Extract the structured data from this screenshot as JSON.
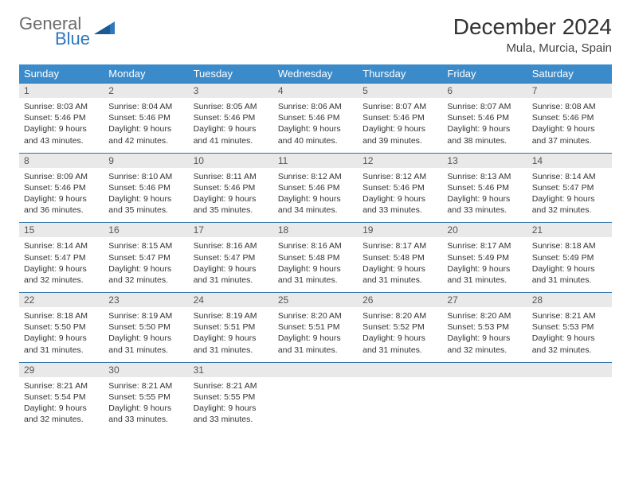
{
  "brand": {
    "word1": "General",
    "word2": "Blue"
  },
  "title": {
    "month": "December 2024",
    "location": "Mula, Murcia, Spain"
  },
  "colors": {
    "header_bg": "#3b8bca",
    "header_text": "#ffffff",
    "daynum_bg": "#e9e9e9",
    "row_rule": "#2f72a8",
    "logo_gray": "#6b6b6b",
    "logo_blue": "#2d78bd",
    "text": "#333333"
  },
  "weekdays": [
    "Sunday",
    "Monday",
    "Tuesday",
    "Wednesday",
    "Thursday",
    "Friday",
    "Saturday"
  ],
  "days": [
    {
      "n": 1,
      "sunrise": "8:03 AM",
      "sunset": "5:46 PM",
      "daylight": "9 hours and 43 minutes."
    },
    {
      "n": 2,
      "sunrise": "8:04 AM",
      "sunset": "5:46 PM",
      "daylight": "9 hours and 42 minutes."
    },
    {
      "n": 3,
      "sunrise": "8:05 AM",
      "sunset": "5:46 PM",
      "daylight": "9 hours and 41 minutes."
    },
    {
      "n": 4,
      "sunrise": "8:06 AM",
      "sunset": "5:46 PM",
      "daylight": "9 hours and 40 minutes."
    },
    {
      "n": 5,
      "sunrise": "8:07 AM",
      "sunset": "5:46 PM",
      "daylight": "9 hours and 39 minutes."
    },
    {
      "n": 6,
      "sunrise": "8:07 AM",
      "sunset": "5:46 PM",
      "daylight": "9 hours and 38 minutes."
    },
    {
      "n": 7,
      "sunrise": "8:08 AM",
      "sunset": "5:46 PM",
      "daylight": "9 hours and 37 minutes."
    },
    {
      "n": 8,
      "sunrise": "8:09 AM",
      "sunset": "5:46 PM",
      "daylight": "9 hours and 36 minutes."
    },
    {
      "n": 9,
      "sunrise": "8:10 AM",
      "sunset": "5:46 PM",
      "daylight": "9 hours and 35 minutes."
    },
    {
      "n": 10,
      "sunrise": "8:11 AM",
      "sunset": "5:46 PM",
      "daylight": "9 hours and 35 minutes."
    },
    {
      "n": 11,
      "sunrise": "8:12 AM",
      "sunset": "5:46 PM",
      "daylight": "9 hours and 34 minutes."
    },
    {
      "n": 12,
      "sunrise": "8:12 AM",
      "sunset": "5:46 PM",
      "daylight": "9 hours and 33 minutes."
    },
    {
      "n": 13,
      "sunrise": "8:13 AM",
      "sunset": "5:46 PM",
      "daylight": "9 hours and 33 minutes."
    },
    {
      "n": 14,
      "sunrise": "8:14 AM",
      "sunset": "5:47 PM",
      "daylight": "9 hours and 32 minutes."
    },
    {
      "n": 15,
      "sunrise": "8:14 AM",
      "sunset": "5:47 PM",
      "daylight": "9 hours and 32 minutes."
    },
    {
      "n": 16,
      "sunrise": "8:15 AM",
      "sunset": "5:47 PM",
      "daylight": "9 hours and 32 minutes."
    },
    {
      "n": 17,
      "sunrise": "8:16 AM",
      "sunset": "5:47 PM",
      "daylight": "9 hours and 31 minutes."
    },
    {
      "n": 18,
      "sunrise": "8:16 AM",
      "sunset": "5:48 PM",
      "daylight": "9 hours and 31 minutes."
    },
    {
      "n": 19,
      "sunrise": "8:17 AM",
      "sunset": "5:48 PM",
      "daylight": "9 hours and 31 minutes."
    },
    {
      "n": 20,
      "sunrise": "8:17 AM",
      "sunset": "5:49 PM",
      "daylight": "9 hours and 31 minutes."
    },
    {
      "n": 21,
      "sunrise": "8:18 AM",
      "sunset": "5:49 PM",
      "daylight": "9 hours and 31 minutes."
    },
    {
      "n": 22,
      "sunrise": "8:18 AM",
      "sunset": "5:50 PM",
      "daylight": "9 hours and 31 minutes."
    },
    {
      "n": 23,
      "sunrise": "8:19 AM",
      "sunset": "5:50 PM",
      "daylight": "9 hours and 31 minutes."
    },
    {
      "n": 24,
      "sunrise": "8:19 AM",
      "sunset": "5:51 PM",
      "daylight": "9 hours and 31 minutes."
    },
    {
      "n": 25,
      "sunrise": "8:20 AM",
      "sunset": "5:51 PM",
      "daylight": "9 hours and 31 minutes."
    },
    {
      "n": 26,
      "sunrise": "8:20 AM",
      "sunset": "5:52 PM",
      "daylight": "9 hours and 31 minutes."
    },
    {
      "n": 27,
      "sunrise": "8:20 AM",
      "sunset": "5:53 PM",
      "daylight": "9 hours and 32 minutes."
    },
    {
      "n": 28,
      "sunrise": "8:21 AM",
      "sunset": "5:53 PM",
      "daylight": "9 hours and 32 minutes."
    },
    {
      "n": 29,
      "sunrise": "8:21 AM",
      "sunset": "5:54 PM",
      "daylight": "9 hours and 32 minutes."
    },
    {
      "n": 30,
      "sunrise": "8:21 AM",
      "sunset": "5:55 PM",
      "daylight": "9 hours and 33 minutes."
    },
    {
      "n": 31,
      "sunrise": "8:21 AM",
      "sunset": "5:55 PM",
      "daylight": "9 hours and 33 minutes."
    }
  ],
  "labels": {
    "sunrise": "Sunrise:",
    "sunset": "Sunset:",
    "daylight": "Daylight:"
  },
  "layout": {
    "first_weekday_index": 0,
    "total_slots": 35,
    "cols": 7
  }
}
